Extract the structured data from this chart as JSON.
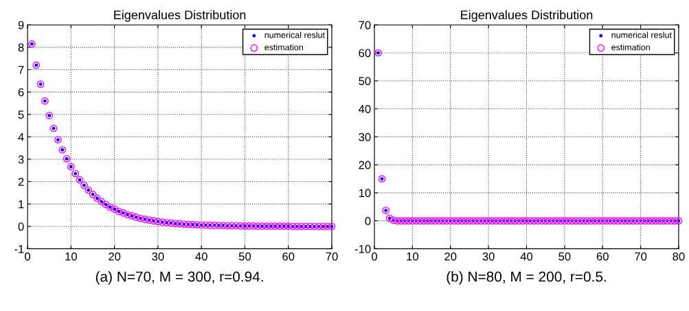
{
  "chart_data": [
    {
      "type": "scatter",
      "title": "Eigenvalues Distribution",
      "annotations": [
        "(a) N=70, M = 300, r=0.94."
      ],
      "x": [
        1,
        2,
        3,
        4,
        5,
        6,
        7,
        8,
        9,
        10,
        11,
        12,
        13,
        14,
        15,
        16,
        17,
        18,
        19,
        20,
        21,
        22,
        23,
        24,
        25,
        26,
        27,
        28,
        29,
        30,
        31,
        32,
        33,
        34,
        35,
        36,
        37,
        38,
        39,
        40,
        41,
        42,
        43,
        44,
        45,
        46,
        47,
        48,
        49,
        50,
        51,
        52,
        53,
        54,
        55,
        56,
        57,
        58,
        59,
        60,
        61,
        62,
        63,
        64,
        65,
        66,
        67,
        68,
        69,
        70
      ],
      "series": [
        {
          "name": "numerical reslut",
          "color": "#0000ff",
          "marker": "point",
          "values": [
            8.15,
            7.2,
            6.35,
            5.6,
            4.95,
            4.38,
            3.87,
            3.42,
            3.02,
            2.67,
            2.36,
            2.08,
            1.84,
            1.62,
            1.43,
            1.26,
            1.11,
            0.98,
            0.86,
            0.77,
            0.67,
            0.6,
            0.53,
            0.47,
            0.41,
            0.36,
            0.32,
            0.28,
            0.25,
            0.22,
            0.19,
            0.17,
            0.15,
            0.13,
            0.12,
            0.1,
            0.09,
            0.08,
            0.07,
            0.06,
            0.06,
            0.05,
            0.05,
            0.04,
            0.04,
            0.03,
            0.03,
            0.03,
            0.02,
            0.02,
            0.02,
            0.02,
            0.01,
            0.01,
            0.01,
            0.01,
            0.01,
            0.01,
            0.01,
            0.01,
            0,
            0,
            0,
            0,
            0,
            0,
            0,
            0,
            0,
            0
          ]
        },
        {
          "name": "estimation",
          "color": "#ff00ff",
          "marker": "circle",
          "values": [
            8.15,
            7.2,
            6.35,
            5.6,
            4.95,
            4.38,
            3.87,
            3.42,
            3.02,
            2.67,
            2.36,
            2.08,
            1.84,
            1.62,
            1.43,
            1.26,
            1.11,
            0.98,
            0.86,
            0.77,
            0.67,
            0.6,
            0.53,
            0.47,
            0.41,
            0.36,
            0.32,
            0.28,
            0.25,
            0.22,
            0.19,
            0.17,
            0.15,
            0.13,
            0.12,
            0.1,
            0.09,
            0.08,
            0.07,
            0.06,
            0.06,
            0.05,
            0.05,
            0.04,
            0.04,
            0.03,
            0.03,
            0.03,
            0.02,
            0.02,
            0.02,
            0.02,
            0.01,
            0.01,
            0.01,
            0.01,
            0.01,
            0.01,
            0.01,
            0.01,
            0,
            0,
            0,
            0,
            0,
            0,
            0,
            0,
            0,
            0
          ]
        }
      ],
      "xlim": [
        0,
        70
      ],
      "xticks": [
        0,
        10,
        20,
        30,
        40,
        50,
        60,
        70
      ],
      "ylim": [
        -1,
        9
      ],
      "yticks": [
        -1,
        0,
        1,
        2,
        3,
        4,
        5,
        6,
        7,
        8,
        9
      ],
      "grid": true,
      "legend": "top right"
    },
    {
      "type": "scatter",
      "title": "Eigenvalues Distribution",
      "annotations": [
        "(b) N=80, M = 200, r=0.5."
      ],
      "x": [
        1,
        2,
        3,
        4,
        5,
        6,
        7,
        8,
        9,
        10,
        11,
        12,
        13,
        14,
        15,
        16,
        17,
        18,
        19,
        20,
        21,
        22,
        23,
        24,
        25,
        26,
        27,
        28,
        29,
        30,
        31,
        32,
        33,
        34,
        35,
        36,
        37,
        38,
        39,
        40,
        41,
        42,
        43,
        44,
        45,
        46,
        47,
        48,
        49,
        50,
        51,
        52,
        53,
        54,
        55,
        56,
        57,
        58,
        59,
        60,
        61,
        62,
        63,
        64,
        65,
        66,
        67,
        68,
        69,
        70,
        71,
        72,
        73,
        74,
        75,
        76,
        77,
        78,
        79,
        80
      ],
      "series": [
        {
          "name": "numerical reslut",
          "color": "#0000ff",
          "marker": "point",
          "values": [
            60,
            15,
            3.7,
            0.9,
            0.2,
            0,
            0,
            0,
            0,
            0,
            0,
            0,
            0,
            0,
            0,
            0,
            0,
            0,
            0,
            0,
            0,
            0,
            0,
            0,
            0,
            0,
            0,
            0,
            0,
            0,
            0,
            0,
            0,
            0,
            0,
            0,
            0,
            0,
            0,
            0,
            0,
            0,
            0,
            0,
            0,
            0,
            0,
            0,
            0,
            0,
            0,
            0,
            0,
            0,
            0,
            0,
            0,
            0,
            0,
            0,
            0,
            0,
            0,
            0,
            0,
            0,
            0,
            0,
            0,
            0,
            0,
            0,
            0,
            0,
            0,
            0,
            0,
            0,
            0,
            0
          ]
        },
        {
          "name": "estimation",
          "color": "#ff00ff",
          "marker": "circle",
          "values": [
            60,
            15,
            3.7,
            0.9,
            0.2,
            0,
            0,
            0,
            0,
            0,
            0,
            0,
            0,
            0,
            0,
            0,
            0,
            0,
            0,
            0,
            0,
            0,
            0,
            0,
            0,
            0,
            0,
            0,
            0,
            0,
            0,
            0,
            0,
            0,
            0,
            0,
            0,
            0,
            0,
            0,
            0,
            0,
            0,
            0,
            0,
            0,
            0,
            0,
            0,
            0,
            0,
            0,
            0,
            0,
            0,
            0,
            0,
            0,
            0,
            0,
            0,
            0,
            0,
            0,
            0,
            0,
            0,
            0,
            0,
            0,
            0,
            0,
            0,
            0,
            0,
            0,
            0,
            0,
            0,
            0
          ]
        }
      ],
      "xlim": [
        0,
        80
      ],
      "xticks": [
        0,
        10,
        20,
        30,
        40,
        50,
        60,
        70,
        80
      ],
      "ylim": [
        -10,
        70
      ],
      "yticks": [
        -10,
        0,
        10,
        20,
        30,
        40,
        50,
        60,
        70
      ],
      "grid": true,
      "legend": "top right"
    }
  ]
}
